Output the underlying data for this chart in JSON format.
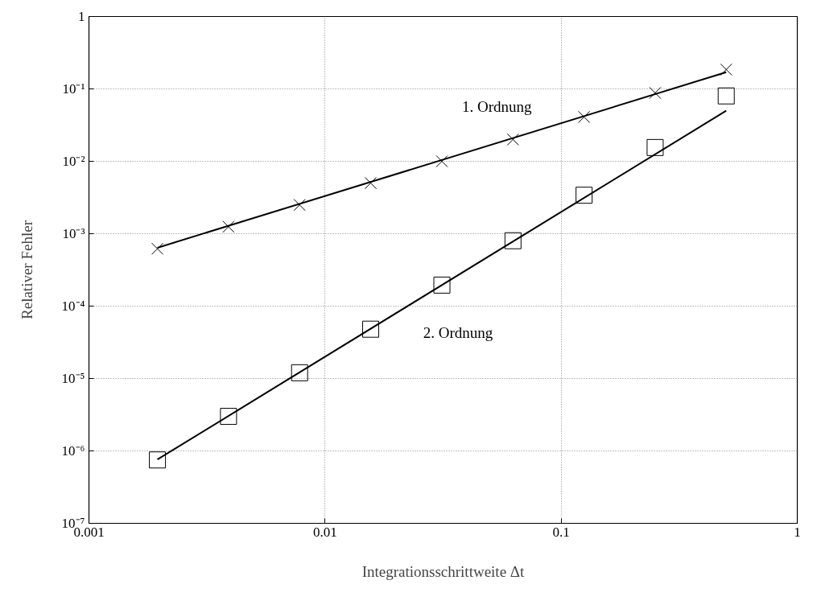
{
  "chart_data": {
    "type": "scatter",
    "xlabel": "Integrationsschrittweite Δt",
    "ylabel": "Relativer Fehler",
    "log": "xy",
    "grid": true,
    "legend": false,
    "xlim": [
      0.001,
      1
    ],
    "ylim": [
      1e-07,
      1
    ],
    "xticks": [
      0.001,
      0.01,
      0.1,
      1
    ],
    "yticks": [
      {
        "value": 1e-07,
        "label": "10⁻⁷"
      },
      {
        "value": 1e-06,
        "label": "10⁻⁶"
      },
      {
        "value": 1e-05,
        "label": "10⁻⁵"
      },
      {
        "value": 0.0001,
        "label": "10⁻⁴"
      },
      {
        "value": 0.001,
        "label": "10⁻³"
      },
      {
        "value": 0.01,
        "label": "10⁻²"
      },
      {
        "value": 0.1,
        "label": "10⁻¹"
      },
      1
    ],
    "series": [
      {
        "name": "1. Ordnung",
        "marker": "cross",
        "color": "#000000",
        "x": [
          0.00195,
          0.0039,
          0.0078,
          0.0156,
          0.03125,
          0.0625,
          0.125,
          0.25,
          0.5
        ],
        "values": [
          0.00062,
          0.00125,
          0.0025,
          0.005,
          0.01,
          0.02,
          0.041,
          0.088,
          0.185
        ]
      },
      {
        "name": "2. Ordnung",
        "marker": "square",
        "color": "#000000",
        "x": [
          0.00195,
          0.0039,
          0.0078,
          0.0156,
          0.03125,
          0.0625,
          0.125,
          0.25,
          0.5
        ],
        "values": [
          7.5e-07,
          3e-06,
          1.2e-05,
          4.8e-05,
          0.000195,
          0.0008,
          0.0034,
          0.0155,
          0.08
        ]
      },
      {
        "type": "line",
        "marker": "none",
        "line_style": "solid",
        "color": "#000000",
        "x": [
          0.00195,
          0.5
        ],
        "values": [
          0.00064,
          0.17
        ]
      },
      {
        "type": "line",
        "marker": "none",
        "line_style": "solid",
        "color": "#000000",
        "x": [
          0.00195,
          0.5
        ],
        "values": [
          7.6e-07,
          0.05
        ]
      }
    ]
  }
}
